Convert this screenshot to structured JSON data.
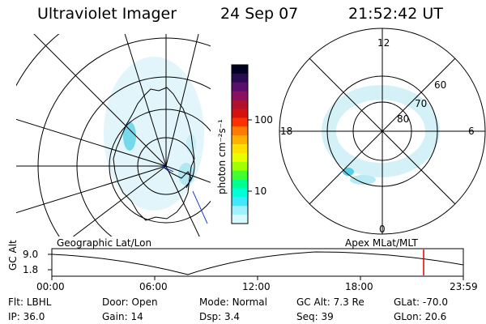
{
  "header": {
    "instrument": "Ultraviolet Imager",
    "date": "24 Sep 07",
    "time": "21:52:42 UT"
  },
  "colorbar": {
    "unit_label": "photon cm⁻²s⁻¹",
    "ticks": [
      "100",
      "10"
    ],
    "colors": [
      "#000020",
      "#2a0a50",
      "#5a0d6a",
      "#8a1060",
      "#b01030",
      "#d51010",
      "#ff3000",
      "#ff7a00",
      "#ffb000",
      "#ffe000",
      "#e8ff00",
      "#a0ff00",
      "#40ff30",
      "#00ff90",
      "#00ffd8",
      "#40e8ff",
      "#a0f0ff",
      "#d8f8ff"
    ]
  },
  "polar_plot": {
    "mlt_labels": {
      "top": "12",
      "right": "6",
      "bottom": "0",
      "left": "18"
    },
    "lat_labels": [
      "60",
      "70",
      "80"
    ]
  },
  "panel_labels": {
    "left": "Geographic Lat/Lon",
    "right": "Apex MLat/MLT"
  },
  "altitude_plot": {
    "ylabel": "GC Alt",
    "yticks": [
      "9.0",
      "1.8"
    ],
    "xticks": [
      "00:00",
      "06:00",
      "12:00",
      "18:00",
      "23:59"
    ]
  },
  "info": {
    "row1": [
      {
        "key": "Flt:",
        "value": "LBHL"
      },
      {
        "key": "Door:",
        "value": "Open"
      },
      {
        "key": "Mode:",
        "value": "Normal"
      },
      {
        "key": "GC Alt:",
        "value": "7.3 Re"
      },
      {
        "key": "GLat:",
        "value": "-70.0"
      }
    ],
    "row2": [
      {
        "key": "IP:",
        "value": "36.0"
      },
      {
        "key": "Gain:",
        "value": "14"
      },
      {
        "key": "Dsp:",
        "value": "3.4"
      },
      {
        "key": "Seq:",
        "value": "39"
      },
      {
        "key": "GLon:",
        "value": "20.6"
      }
    ]
  },
  "accent": {
    "time_marker": "#e00000",
    "aurora": "#a8e4f0"
  }
}
